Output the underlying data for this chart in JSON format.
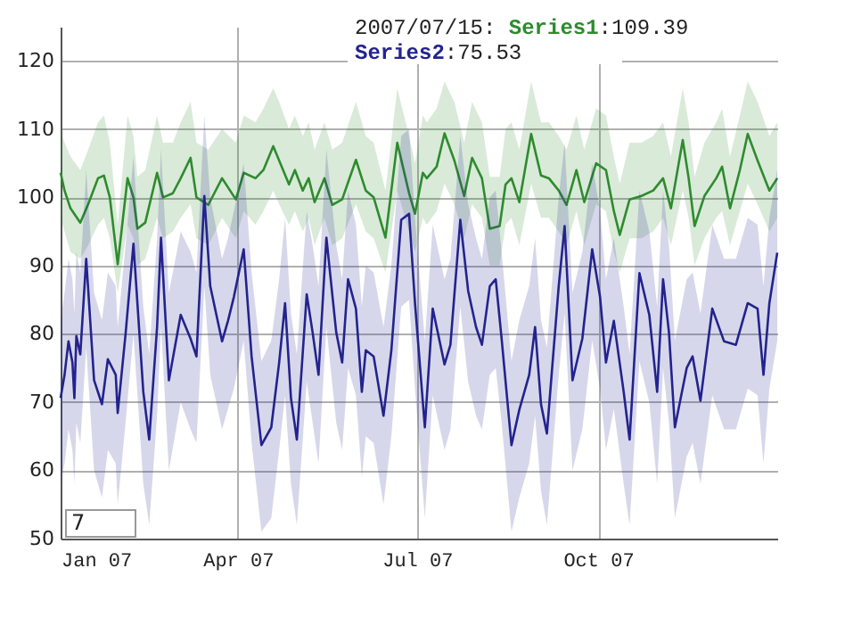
{
  "chart_data": {
    "type": "line",
    "xlim": [
      "2007-01-01",
      "2007-12-31"
    ],
    "xticks": [
      {
        "value": "2007-01-01",
        "label": "Jan 07"
      },
      {
        "value": "2007-04-01",
        "label": "Apr 07"
      },
      {
        "value": "2007-07-01",
        "label": "Jul 07"
      },
      {
        "value": "2007-10-01",
        "label": "Oct 07"
      }
    ],
    "ylim": [
      50,
      125
    ],
    "yticks": [
      50,
      60,
      70,
      80,
      90,
      100,
      110,
      120
    ],
    "grid": true,
    "marker": "none",
    "line_style": "solid",
    "annotations": [
      "2007/07/15:",
      ":109.39",
      ":75.53",
      "7"
    ],
    "series": [
      {
        "name": "Series1",
        "color": "#2e8b2e",
        "x": [
          "2007-01-01",
          "2007-01-03",
          "2007-01-06",
          "2007-01-11",
          "2007-01-15",
          "2007-01-20",
          "2007-01-23",
          "2007-01-26",
          "2007-01-30",
          "2007-02-04",
          "2007-02-07",
          "2007-02-09",
          "2007-02-13",
          "2007-02-19",
          "2007-02-22",
          "2007-02-27",
          "2007-03-03",
          "2007-03-08",
          "2007-03-11",
          "2007-03-17",
          "2007-03-24",
          "2007-03-31",
          "2007-04-04",
          "2007-04-10",
          "2007-04-14",
          "2007-04-19",
          "2007-04-22",
          "2007-04-27",
          "2007-04-30",
          "2007-05-04",
          "2007-05-07",
          "2007-05-10",
          "2007-05-15",
          "2007-05-19",
          "2007-05-24",
          "2007-05-31",
          "2007-06-05",
          "2007-06-09",
          "2007-06-15",
          "2007-06-21",
          "2007-06-27",
          "2007-06-30",
          "2007-07-04",
          "2007-07-06",
          "2007-07-11",
          "2007-07-15",
          "2007-07-20",
          "2007-07-25",
          "2007-07-29",
          "2007-08-03",
          "2007-08-07",
          "2007-08-12",
          "2007-08-15",
          "2007-08-18",
          "2007-08-22",
          "2007-08-28",
          "2007-09-02",
          "2007-09-06",
          "2007-09-11",
          "2007-09-15",
          "2007-09-20",
          "2007-09-24",
          "2007-09-30",
          "2007-10-05",
          "2007-10-09",
          "2007-10-12",
          "2007-10-17",
          "2007-10-23",
          "2007-10-29",
          "2007-11-03",
          "2007-11-07",
          "2007-11-13",
          "2007-11-16",
          "2007-11-19",
          "2007-11-24",
          "2007-11-30",
          "2007-12-03",
          "2007-12-07",
          "2007-12-12",
          "2007-12-16",
          "2007-12-21",
          "2007-12-27",
          "2007-12-31"
        ],
        "values": [
          103.6,
          101,
          98.4,
          96.3,
          99,
          102.8,
          103.2,
          100,
          90.2,
          102.8,
          100,
          95.4,
          96.3,
          103.6,
          100,
          100.6,
          102.8,
          105.8,
          100,
          98.9,
          102.8,
          99.7,
          103.6,
          102.8,
          104,
          107.5,
          105.4,
          101.9,
          104,
          101,
          102.8,
          99.3,
          102.8,
          98.9,
          99.7,
          105.5,
          101,
          100,
          94.1,
          108,
          100.6,
          97.6,
          103.6,
          102.8,
          104.5,
          109.39,
          105.4,
          100.2,
          105.8,
          102.8,
          95.4,
          95.8,
          101.9,
          102.8,
          99.3,
          109.3,
          103.2,
          102.8,
          101,
          98.9,
          104,
          99.3,
          105,
          104,
          98,
          94.5,
          99.7,
          100.2,
          101,
          102.8,
          98.4,
          108.4,
          102.8,
          95.8,
          100.2,
          102.8,
          104.5,
          98.4,
          104,
          109.3,
          105.4,
          101,
          102.8
        ],
        "lower": [
          97,
          95,
          92,
          91,
          93,
          96,
          97,
          94,
          86,
          96,
          94,
          90,
          91,
          97,
          94,
          95,
          97,
          99,
          94,
          93,
          97,
          94,
          98,
          96,
          98,
          101,
          99,
          96,
          98,
          95,
          97,
          93,
          97,
          93,
          94,
          99,
          95,
          94,
          89,
          101,
          95,
          92,
          97,
          96,
          98,
          102,
          99,
          94,
          99,
          97,
          90,
          90,
          96,
          97,
          93,
          102,
          97,
          97,
          95,
          93,
          98,
          93,
          99,
          98,
          92,
          89,
          94,
          94,
          95,
          97,
          93,
          101,
          97,
          90,
          94,
          97,
          98,
          93,
          98,
          102,
          99,
          95,
          97
        ],
        "upper": [
          110,
          108,
          106,
          104,
          107,
          111,
          112,
          108,
          96,
          112,
          109,
          103,
          104,
          112,
          108,
          108,
          111,
          114,
          108,
          107,
          110,
          108,
          112,
          111,
          113,
          116,
          114,
          110,
          112,
          109,
          111,
          107,
          111,
          107,
          108,
          114,
          109,
          108,
          101,
          116,
          109,
          105,
          112,
          111,
          113,
          117,
          114,
          108,
          114,
          111,
          103,
          103,
          110,
          111,
          107,
          117,
          111,
          111,
          109,
          107,
          112,
          107,
          113,
          112,
          106,
          102,
          108,
          108,
          109,
          111,
          106,
          116,
          111,
          103,
          108,
          111,
          113,
          106,
          112,
          117,
          114,
          109,
          111
        ]
      },
      {
        "name": "Series2",
        "color": "#23238e",
        "x": [
          "2007-01-01",
          "2007-01-03",
          "2007-01-05",
          "2007-01-07",
          "2007-01-08",
          "2007-01-09",
          "2007-01-11",
          "2007-01-14",
          "2007-01-18",
          "2007-01-22",
          "2007-01-25",
          "2007-01-29",
          "2007-01-30",
          "2007-02-03",
          "2007-02-07",
          "2007-02-12",
          "2007-02-15",
          "2007-02-19",
          "2007-02-21",
          "2007-02-25",
          "2007-03-03",
          "2007-03-08",
          "2007-03-11",
          "2007-03-15",
          "2007-03-18",
          "2007-03-24",
          "2007-03-27",
          "2007-03-30",
          "2007-04-04",
          "2007-04-08",
          "2007-04-13",
          "2007-04-18",
          "2007-04-22",
          "2007-04-25",
          "2007-04-28",
          "2007-05-01",
          "2007-05-06",
          "2007-05-09",
          "2007-05-12",
          "2007-05-16",
          "2007-05-21",
          "2007-05-24",
          "2007-05-27",
          "2007-05-31",
          "2007-06-03",
          "2007-06-05",
          "2007-06-09",
          "2007-06-14",
          "2007-06-18",
          "2007-06-23",
          "2007-06-27",
          "2007-06-30",
          "2007-07-05",
          "2007-07-09",
          "2007-07-15",
          "2007-07-18",
          "2007-07-23",
          "2007-07-27",
          "2007-07-31",
          "2007-08-03",
          "2007-08-07",
          "2007-08-10",
          "2007-08-13",
          "2007-08-18",
          "2007-08-22",
          "2007-08-27",
          "2007-08-30",
          "2007-09-02",
          "2007-09-05",
          "2007-09-11",
          "2007-09-14",
          "2007-09-18",
          "2007-09-23",
          "2007-09-28",
          "2007-10-02",
          "2007-10-05",
          "2007-10-09",
          "2007-10-14",
          "2007-10-17",
          "2007-10-22",
          "2007-10-27",
          "2007-10-31",
          "2007-11-03",
          "2007-11-06",
          "2007-11-09",
          "2007-11-15",
          "2007-11-18",
          "2007-11-22",
          "2007-11-28",
          "2007-12-04",
          "2007-12-10",
          "2007-12-16",
          "2007-12-21",
          "2007-12-24",
          "2007-12-27",
          "2007-12-31"
        ],
        "values": [
          70.6,
          74,
          78.9,
          75.8,
          70.6,
          79.7,
          77,
          91,
          73.2,
          69.7,
          76.3,
          74,
          68.4,
          80,
          93.2,
          71.5,
          64.5,
          81,
          94.1,
          73.2,
          82.8,
          79.3,
          76.7,
          100.2,
          87,
          78.9,
          81.9,
          85.4,
          92.4,
          76.7,
          63.7,
          66.3,
          75.8,
          84.5,
          70.6,
          64.5,
          85.8,
          80.2,
          74,
          94.1,
          80.2,
          75.8,
          88,
          83.7,
          71.5,
          77.6,
          76.7,
          68,
          77.6,
          96.7,
          97.6,
          84.5,
          66.3,
          83.7,
          75.53,
          78.4,
          96.7,
          86.3,
          81,
          78.4,
          87,
          88,
          79.3,
          63.7,
          68.9,
          74,
          81,
          69.7,
          65.4,
          87,
          95.8,
          73.2,
          79.3,
          92.4,
          85.4,
          75.8,
          81.9,
          71.5,
          64.5,
          88.9,
          82.8,
          71.5,
          88,
          80.2,
          66.3,
          75,
          76.7,
          70.2,
          83.7,
          78.9,
          78.4,
          84.5,
          83.7,
          74,
          84.5,
          91.9
        ],
        "lower": [
          58,
          61,
          66,
          63,
          58,
          67,
          64,
          78,
          60,
          56,
          63,
          61,
          55,
          67,
          80,
          58,
          52,
          68,
          81,
          60,
          70,
          66,
          64,
          87,
          74,
          66,
          69,
          72,
          79,
          64,
          51,
          53,
          63,
          71,
          58,
          52,
          73,
          67,
          61,
          81,
          67,
          63,
          75,
          71,
          59,
          65,
          64,
          55,
          65,
          84,
          85,
          72,
          53,
          71,
          63,
          66,
          84,
          73,
          68,
          66,
          74,
          75,
          67,
          51,
          56,
          61,
          68,
          57,
          52,
          74,
          83,
          60,
          66,
          79,
          72,
          63,
          69,
          58,
          52,
          76,
          70,
          58,
          75,
          67,
          53,
          62,
          64,
          58,
          71,
          66,
          66,
          72,
          71,
          61,
          72,
          79
        ],
        "upper": [
          82,
          86,
          91,
          88,
          83,
          92,
          89,
          104,
          86,
          82,
          89,
          87,
          81,
          93,
          106,
          84,
          77,
          94,
          107,
          86,
          95,
          92,
          89,
          112,
          100,
          91,
          94,
          98,
          105,
          89,
          76,
          79,
          88,
          97,
          83,
          77,
          98,
          93,
          87,
          107,
          93,
          88,
          101,
          96,
          84,
          90,
          89,
          81,
          90,
          109,
          110,
          97,
          79,
          96,
          88,
          91,
          109,
          99,
          94,
          91,
          100,
          101,
          92,
          76,
          82,
          87,
          94,
          82,
          78,
          100,
          108,
          86,
          92,
          105,
          98,
          88,
          94,
          84,
          77,
          101,
          95,
          84,
          101,
          93,
          79,
          88,
          89,
          83,
          96,
          91,
          91,
          97,
          96,
          87,
          97,
          104
        ]
      }
    ]
  }
}
